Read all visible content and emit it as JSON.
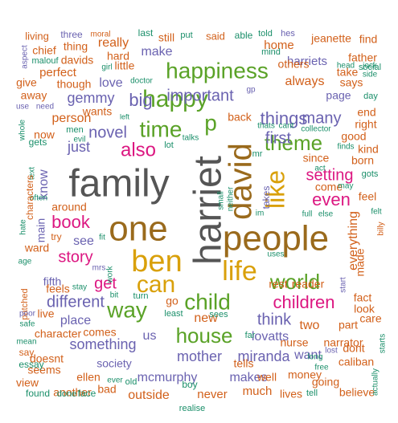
{
  "colors": {
    "orange": "#d2601a",
    "teal": "#1b8f6a",
    "purple": "#6a62b0",
    "magenta": "#dc1781",
    "green": "#5aa227",
    "gold": "#d9a00a",
    "brown": "#9a6a1c",
    "gray": "#555555"
  },
  "words": [
    "family",
    "harriet",
    "one",
    "people",
    "david",
    "ben",
    "happiness",
    "life",
    "like",
    "can",
    "happy",
    "time",
    "child",
    "world",
    "p",
    "house",
    "theme",
    "way",
    "also",
    "children",
    "book",
    "things",
    "first",
    "story",
    "even",
    "important",
    "novel",
    "big",
    "setting",
    "different",
    "get",
    "many",
    "just",
    "think",
    "mother",
    "miranda",
    "something",
    "mcmurphy",
    "gemmy",
    "person",
    "see",
    "place",
    "lovatts",
    "us",
    "make",
    "two",
    "love",
    "always",
    "harriets",
    "page",
    "new",
    "part",
    "narrator",
    "nurse",
    "society",
    "makes",
    "want",
    "everything",
    "fifth",
    "fact",
    "main",
    "know",
    "outside",
    "never",
    "much",
    "really",
    "little",
    "davids",
    "perfect",
    "though",
    "home",
    "others",
    "take",
    "says",
    "jeanette",
    "father",
    "find",
    "good",
    "kind",
    "born",
    "end",
    "right",
    "feel",
    "come",
    "made",
    "look",
    "character",
    "comes",
    "ellen",
    "dont",
    "money",
    "caliban",
    "believe",
    "lives",
    "going",
    "well",
    "tells",
    "bad",
    "another",
    "doesnt",
    "seems",
    "say",
    "essay",
    "view",
    "found",
    "done",
    "face",
    "boy",
    "ever",
    "old",
    "wants",
    "back",
    "now",
    "men",
    "living",
    "three",
    "moral",
    "last",
    "still",
    "put",
    "said",
    "able",
    "told",
    "hes",
    "social",
    "aspect",
    "thing",
    "chief",
    "malouf",
    "give",
    "away",
    "use",
    "need",
    "whole",
    "gets",
    "text",
    "often",
    "hate",
    "age",
    "ward",
    "try",
    "around",
    "characters",
    "feels",
    "stay",
    "mrs",
    "fit",
    "work",
    "patched",
    "poor",
    "safe",
    "mean",
    "live",
    "girl",
    "hard",
    "doctor",
    "left",
    "evil",
    "lot",
    "turn",
    "bit",
    "go",
    "least",
    "sees",
    "far",
    "realise",
    "small",
    "neither",
    "takes",
    "mr",
    "im",
    "full",
    "else",
    "may",
    "act",
    "since",
    "finds",
    "gots",
    "felt",
    "billy",
    "start",
    "reader",
    "rest",
    "uses",
    "lost",
    "care",
    "actually",
    "starts",
    "long",
    "free",
    "tell",
    "talks",
    "gp",
    "mind",
    "head",
    "jock",
    "side",
    "day",
    "thats",
    "cant",
    "collector"
  ]
}
